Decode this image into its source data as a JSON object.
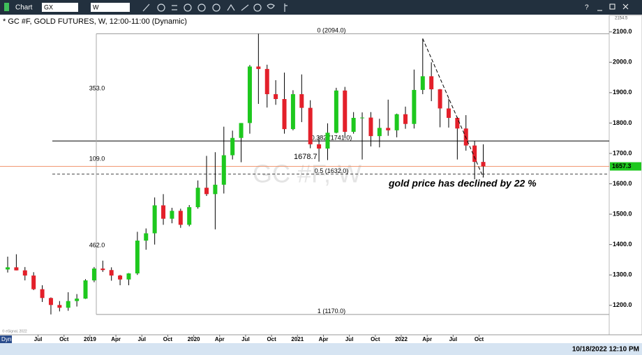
{
  "toolbar": {
    "title": "Chart",
    "symbol": "GX",
    "interval": "W",
    "help": "?"
  },
  "status_bar": {
    "mode": "Dyn",
    "datetime": "10/18/2022 12:10 PM",
    "copyright": "© eSignal, 2022"
  },
  "chart_data": {
    "type": "candlestick",
    "title": "* GC #F, GOLD FUTURES, W, 12:00-11:00 (Dynamic)",
    "watermark": "GC #F, W",
    "annotation": "gold price has declined by 22 %",
    "up_color": "#1ec81e",
    "down_color": "#e3202a",
    "x": [
      "2018-03",
      "2018-04",
      "2018-05",
      "2018-06",
      "2018-07",
      "2018-08",
      "2018-09",
      "2018-10",
      "2018-11",
      "2018-12",
      "2019-01",
      "2019-02",
      "2019-03",
      "2019-04",
      "2019-05",
      "2019-06",
      "2019-07",
      "2019-08",
      "2019-09",
      "2019-10",
      "2019-11",
      "2019-12",
      "2020-01",
      "2020-02",
      "2020-03",
      "2020-04",
      "2020-05",
      "2020-06",
      "2020-07",
      "2020-08",
      "2020-09",
      "2020-10",
      "2020-11",
      "2020-12",
      "2021-01",
      "2021-02",
      "2021-03",
      "2021-04",
      "2021-05",
      "2021-06",
      "2021-07",
      "2021-08",
      "2021-09",
      "2021-10",
      "2021-11",
      "2021-12",
      "2022-01",
      "2022-02",
      "2022-03",
      "2022-04",
      "2022-05",
      "2022-06",
      "2022-07",
      "2022-08",
      "2022-09",
      "2022-10"
    ],
    "open": [
      1318,
      1325,
      1315,
      1298,
      1253,
      1224,
      1201,
      1192,
      1214,
      1222,
      1282,
      1321,
      1316,
      1298,
      1285,
      1305,
      1413,
      1437,
      1529,
      1485,
      1511,
      1465,
      1523,
      1587,
      1566,
      1597,
      1694,
      1751,
      1800,
      1986,
      1978,
      1895,
      1879,
      1780,
      1895,
      1850,
      1730,
      1716,
      1768,
      1907,
      1771,
      1817,
      1818,
      1757,
      1784,
      1776,
      1829,
      1797,
      1909,
      1954,
      1911,
      1848,
      1817,
      1782,
      1726,
      1672
    ],
    "high": [
      1360,
      1368,
      1326,
      1309,
      1266,
      1226,
      1214,
      1243,
      1237,
      1286,
      1326,
      1347,
      1325,
      1300,
      1306,
      1442,
      1453,
      1555,
      1566,
      1521,
      1518,
      1530,
      1611,
      1692,
      1704,
      1788,
      1775,
      1800,
      1991,
      2094,
      1992,
      1941,
      1966,
      1908,
      1960,
      1875,
      1758,
      1799,
      1916,
      1919,
      1836,
      1835,
      1836,
      1814,
      1877,
      1831,
      1854,
      1976,
      2078,
      2000,
      1912,
      1880,
      1820,
      1826,
      1740,
      1730
    ],
    "low": [
      1308,
      1315,
      1282,
      1250,
      1211,
      1170,
      1180,
      1182,
      1196,
      1221,
      1276,
      1310,
      1281,
      1266,
      1266,
      1300,
      1383,
      1400,
      1465,
      1470,
      1455,
      1460,
      1518,
      1560,
      1450,
      1568,
      1680,
      1671,
      1765,
      1863,
      1851,
      1860,
      1765,
      1776,
      1803,
      1717,
      1673,
      1678,
      1766,
      1750,
      1765,
      1680,
      1723,
      1720,
      1758,
      1753,
      1781,
      1782,
      1895,
      1872,
      1786,
      1785,
      1680,
      1709,
      1615,
      1621
    ],
    "close": [
      1325,
      1315,
      1298,
      1253,
      1224,
      1201,
      1192,
      1214,
      1222,
      1282,
      1321,
      1316,
      1298,
      1285,
      1305,
      1413,
      1437,
      1529,
      1485,
      1511,
      1465,
      1523,
      1587,
      1566,
      1597,
      1694,
      1751,
      1800,
      1986,
      1978,
      1895,
      1879,
      1780,
      1895,
      1850,
      1730,
      1716,
      1768,
      1907,
      1771,
      1817,
      1818,
      1757,
      1784,
      1776,
      1829,
      1797,
      1909,
      1954,
      1911,
      1848,
      1817,
      1782,
      1726,
      1672,
      1657.3
    ],
    "xlim": [
      "2018-03",
      "2023-12"
    ],
    "xticks": [
      {
        "value": "2018-07",
        "label": "Jul"
      },
      {
        "value": "2018-10",
        "label": "Oct"
      },
      {
        "value": "2019-01",
        "label": "2019"
      },
      {
        "value": "2019-04",
        "label": "Apr"
      },
      {
        "value": "2019-07",
        "label": "Jul"
      },
      {
        "value": "2019-10",
        "label": "Oct"
      },
      {
        "value": "2020-01",
        "label": "2020"
      },
      {
        "value": "2020-04",
        "label": "Apr"
      },
      {
        "value": "2020-07",
        "label": "Jul"
      },
      {
        "value": "2020-10",
        "label": "Oct"
      },
      {
        "value": "2021-01",
        "label": "2021"
      },
      {
        "value": "2021-04",
        "label": "Apr"
      },
      {
        "value": "2021-07",
        "label": "Jul"
      },
      {
        "value": "2021-10",
        "label": "Oct"
      },
      {
        "value": "2022-01",
        "label": "2022"
      },
      {
        "value": "2022-04",
        "label": "Apr"
      },
      {
        "value": "2022-07",
        "label": "Jul"
      },
      {
        "value": "2022-10",
        "label": "Oct"
      }
    ],
    "ylim": [
      1103,
      2154.5
    ],
    "y_top_label": "2154.5",
    "yticks": [
      {
        "value": 1200,
        "label": "1200.0"
      },
      {
        "value": 1300,
        "label": "1300.0"
      },
      {
        "value": 1400,
        "label": "1400.0"
      },
      {
        "value": 1500,
        "label": "1500.0"
      },
      {
        "value": 1600,
        "label": "1600.0"
      },
      {
        "value": 1700,
        "label": "1700.0"
      },
      {
        "value": 1800,
        "label": "1800.0"
      },
      {
        "value": 1900,
        "label": "1900.0"
      },
      {
        "value": 2000,
        "label": "2000.0"
      },
      {
        "value": 2100,
        "label": "2100.0"
      }
    ],
    "fib_levels": [
      {
        "label": "0 (2094.0)",
        "value": 2094
      },
      {
        "label": "0.382 (1741.0)",
        "value": 1741
      },
      {
        "label": "0.5 (1632.0)",
        "value": 1632
      },
      {
        "label": "1 (1170.0)",
        "value": 1170
      }
    ],
    "measurements": [
      "353.0",
      "109.0",
      "462.0"
    ],
    "marked_price": {
      "label": "1678.7",
      "value": 1678.7
    },
    "last_price": 1657.3,
    "last_price_color": "#f08a5d"
  }
}
